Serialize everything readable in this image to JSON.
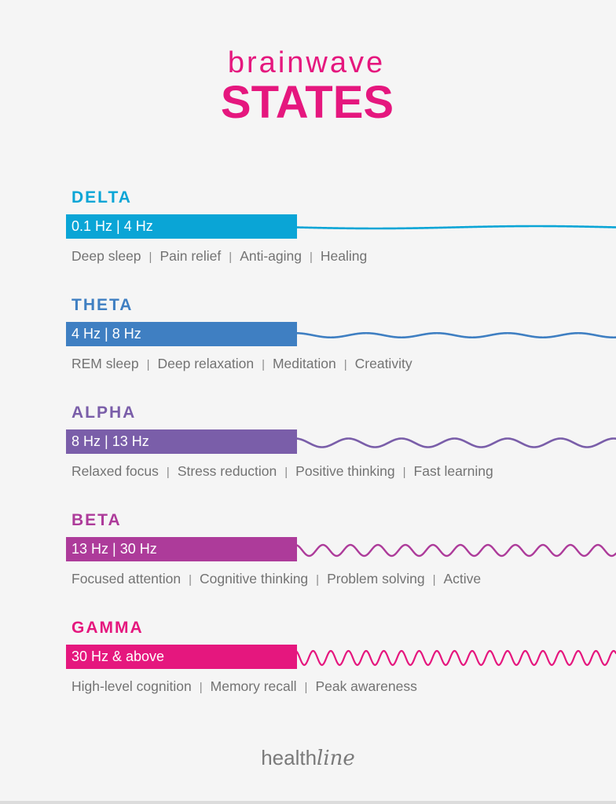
{
  "header": {
    "subtitle": "brainwave",
    "title": "STATES",
    "accent_color": "#e5177e"
  },
  "bands": [
    {
      "name": "DELTA",
      "range": "0.1 Hz | 4 Hz",
      "color": "#0aa5d6",
      "descriptors": [
        "Deep sleep",
        "Pain relief",
        "Anti-aging",
        "Healing"
      ]
    },
    {
      "name": "THETA",
      "range": "4 Hz | 8 Hz",
      "color": "#3f7fc2",
      "descriptors": [
        "REM sleep",
        "Deep relaxation",
        "Meditation",
        "Creativity"
      ]
    },
    {
      "name": "ALPHA",
      "range": "8 Hz | 13 Hz",
      "color": "#7a5ea9",
      "descriptors": [
        "Relaxed focus",
        "Stress reduction",
        "Positive thinking",
        "Fast learning"
      ]
    },
    {
      "name": "BETA",
      "range": "13 Hz | 30 Hz",
      "color": "#ad3b9a",
      "descriptors": [
        "Focused attention",
        "Cognitive thinking",
        "Problem solving",
        "Active"
      ]
    },
    {
      "name": "GAMMA",
      "range": "30 Hz & above",
      "color": "#e5177e",
      "descriptors": [
        "High-level cognition",
        "Memory recall",
        "Peak awareness"
      ]
    }
  ],
  "separator": "|",
  "footer": {
    "logo_part1": "health",
    "logo_part2": "line"
  }
}
